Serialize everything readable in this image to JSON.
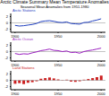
{
  "chart_data": [
    {
      "type": "line",
      "title": "Arctic Climate Summary Mean Temperature Anomalies",
      "subtitle": "Seasonal Mean Anomalies from 1951-1980",
      "label": "Arctic Stations",
      "color": "#1f3fbf",
      "x": [
        1900,
        1905,
        1910,
        1915,
        1920,
        1925,
        1930,
        1935,
        1940,
        1945,
        1950,
        1955,
        1960,
        1965,
        1970,
        1975,
        1980,
        1985,
        1990,
        1995,
        2000
      ],
      "values": [
        -0.8,
        -1.0,
        -0.9,
        -0.7,
        -0.5,
        -0.2,
        0.4,
        0.6,
        0.7,
        0.5,
        0.2,
        0.1,
        0.3,
        -0.2,
        -0.3,
        -0.4,
        0.1,
        0.2,
        0.6,
        0.9,
        1.3
      ],
      "xlim": [
        1895,
        2005
      ],
      "xticks": [
        1900,
        1950,
        2000
      ],
      "ylim": [
        -3,
        3
      ],
      "yticks": [
        -2,
        0,
        2
      ]
    },
    {
      "type": "line",
      "label": "Arctic Ocean",
      "color": "#9a1fbf",
      "x": [
        1900,
        1905,
        1910,
        1915,
        1920,
        1925,
        1930,
        1935,
        1940,
        1945,
        1950,
        1955,
        1960,
        1965,
        1970,
        1975,
        1980,
        1985,
        1990,
        1995,
        2000
      ],
      "values": [
        -0.6,
        -0.9,
        -0.7,
        -0.8,
        -0.4,
        -0.1,
        0.3,
        0.5,
        0.8,
        0.4,
        0.3,
        0.0,
        0.2,
        -0.3,
        -0.2,
        -0.5,
        0.0,
        0.3,
        0.5,
        0.8,
        1.1
      ],
      "xlim": [
        1895,
        2005
      ],
      "xticks": [
        1900,
        1950,
        2000
      ],
      "ylim": [
        -3,
        3
      ],
      "yticks": [
        -2,
        0,
        2
      ]
    },
    {
      "type": "bar",
      "label": "Land Stations",
      "color": "#cc2020",
      "x": [
        1900,
        1905,
        1910,
        1915,
        1920,
        1925,
        1930,
        1935,
        1940,
        1945,
        1950,
        1955,
        1960,
        1965,
        1970,
        1975,
        1980,
        1985,
        1990,
        1995,
        2000
      ],
      "values": [
        -1.1,
        -0.9,
        -1.2,
        -0.8,
        -0.6,
        -0.3,
        0.5,
        0.7,
        0.9,
        0.6,
        0.3,
        0.1,
        0.2,
        -0.4,
        -0.5,
        -0.3,
        0.2,
        0.4,
        0.7,
        1.0,
        1.5
      ],
      "xlim": [
        1895,
        2005
      ],
      "xticks": [
        1900,
        1950,
        2000
      ],
      "ylim": [
        -3,
        3
      ],
      "yticks": [
        -2,
        0,
        2
      ]
    }
  ]
}
